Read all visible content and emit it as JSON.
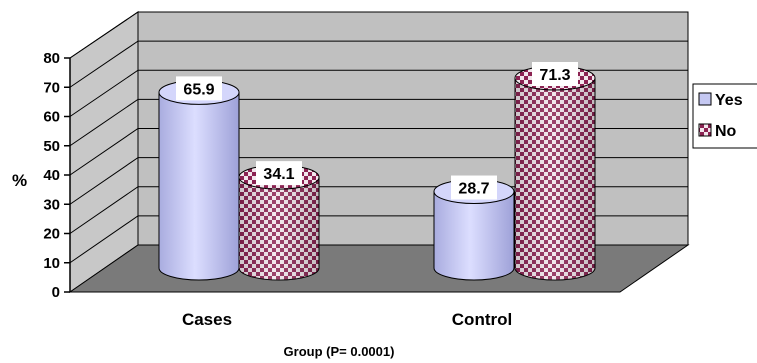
{
  "chart_data": {
    "type": "bar",
    "categories": [
      "Cases",
      "Control"
    ],
    "series": [
      {
        "name": "Yes",
        "values": [
          65.9,
          28.7
        ],
        "color": "#c5c8f2"
      },
      {
        "name": "No",
        "values": [
          34.1,
          71.3
        ],
        "color": "#8b2252"
      }
    ],
    "ylabel": "%",
    "xlabel": "Group (P= 0.0001)",
    "ylim": [
      0,
      80
    ],
    "yticks": [
      "0",
      "10",
      "20",
      "30",
      "40",
      "50",
      "60",
      "70",
      "80"
    ],
    "data_labels": [
      "65.9",
      "34.1",
      "28.7",
      "71.3"
    ],
    "grid": true,
    "legend": "right",
    "style": "3d-cylinder"
  }
}
